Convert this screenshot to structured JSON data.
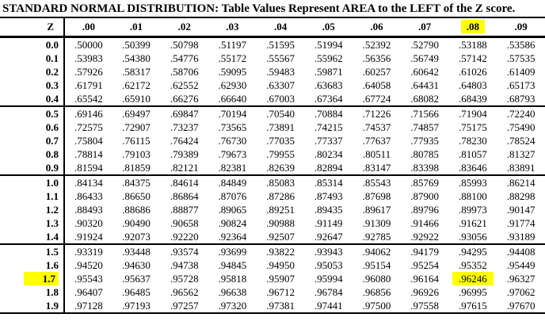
{
  "title": "STANDARD NORMAL DISTRIBUTION: Table Values Represent AREA to the LEFT of the Z score.",
  "colors": {
    "highlight": "#ffff00",
    "text": "#000000",
    "rule": "#000000",
    "background": "#ffffff"
  },
  "table": {
    "corner_header": "Z",
    "column_headers": [
      ".00",
      ".01",
      ".02",
      ".03",
      ".04",
      ".05",
      ".06",
      ".07",
      ".08",
      ".09"
    ],
    "highlight": {
      "column_header": ".08",
      "row_label": "1.7",
      "cell_value": ".96246"
    },
    "row_groups": [
      {
        "rows": [
          {
            "z": "0.0",
            "values": [
              ".50000",
              ".50399",
              ".50798",
              ".51197",
              ".51595",
              ".51994",
              ".52392",
              ".52790",
              ".53188",
              ".53586"
            ]
          },
          {
            "z": "0.1",
            "values": [
              ".53983",
              ".54380",
              ".54776",
              ".55172",
              ".55567",
              ".55962",
              ".56356",
              ".56749",
              ".57142",
              ".57535"
            ]
          },
          {
            "z": "0.2",
            "values": [
              ".57926",
              ".58317",
              ".58706",
              ".59095",
              ".59483",
              ".59871",
              ".60257",
              ".60642",
              ".61026",
              ".61409"
            ]
          },
          {
            "z": "0.3",
            "values": [
              ".61791",
              ".62172",
              ".62552",
              ".62930",
              ".63307",
              ".63683",
              ".64058",
              ".64431",
              ".64803",
              ".65173"
            ]
          },
          {
            "z": "0.4",
            "values": [
              ".65542",
              ".65910",
              ".66276",
              ".66640",
              ".67003",
              ".67364",
              ".67724",
              ".68082",
              ".68439",
              ".68793"
            ]
          }
        ]
      },
      {
        "rows": [
          {
            "z": "0.5",
            "values": [
              ".69146",
              ".69497",
              ".69847",
              ".70194",
              ".70540",
              ".70884",
              ".71226",
              ".71566",
              ".71904",
              ".72240"
            ]
          },
          {
            "z": "0.6",
            "values": [
              ".72575",
              ".72907",
              ".73237",
              ".73565",
              ".73891",
              ".74215",
              ".74537",
              ".74857",
              ".75175",
              ".75490"
            ]
          },
          {
            "z": "0.7",
            "values": [
              ".75804",
              ".76115",
              ".76424",
              ".76730",
              ".77035",
              ".77337",
              ".77637",
              ".77935",
              ".78230",
              ".78524"
            ]
          },
          {
            "z": "0.8",
            "values": [
              ".78814",
              ".79103",
              ".79389",
              ".79673",
              ".79955",
              ".80234",
              ".80511",
              ".80785",
              ".81057",
              ".81327"
            ]
          },
          {
            "z": "0.9",
            "values": [
              ".81594",
              ".81859",
              ".82121",
              ".82381",
              ".82639",
              ".82894",
              ".83147",
              ".83398",
              ".83646",
              ".83891"
            ]
          }
        ]
      },
      {
        "rows": [
          {
            "z": "1.0",
            "values": [
              ".84134",
              ".84375",
              ".84614",
              ".84849",
              ".85083",
              ".85314",
              ".85543",
              ".85769",
              ".85993",
              ".86214"
            ]
          },
          {
            "z": "1.1",
            "values": [
              ".86433",
              ".86650",
              ".86864",
              ".87076",
              ".87286",
              ".87493",
              ".87698",
              ".87900",
              ".88100",
              ".88298"
            ]
          },
          {
            "z": "1.2",
            "values": [
              ".88493",
              ".88686",
              ".88877",
              ".89065",
              ".89251",
              ".89435",
              ".89617",
              ".89796",
              ".89973",
              ".90147"
            ]
          },
          {
            "z": "1.3",
            "values": [
              ".90320",
              ".90490",
              ".90658",
              ".90824",
              ".90988",
              ".91149",
              ".91309",
              ".91466",
              ".91621",
              ".91774"
            ]
          },
          {
            "z": "1.4",
            "values": [
              ".91924",
              ".92073",
              ".92220",
              ".92364",
              ".92507",
              ".92647",
              ".92785",
              ".92922",
              ".93056",
              ".93189"
            ]
          }
        ]
      },
      {
        "rows": [
          {
            "z": "1.5",
            "values": [
              ".93319",
              ".93448",
              ".93574",
              ".93699",
              ".93822",
              ".93943",
              ".94062",
              ".94179",
              ".94295",
              ".94408"
            ]
          },
          {
            "z": "1.6",
            "values": [
              ".94520",
              ".94630",
              ".94738",
              ".94845",
              ".94950",
              ".95053",
              ".95154",
              ".95254",
              ".95352",
              ".95449"
            ]
          },
          {
            "z": "1.7",
            "values": [
              ".95543",
              ".95637",
              ".95728",
              ".95818",
              ".95907",
              ".95994",
              ".96080",
              ".96164",
              ".96246",
              ".96327"
            ]
          },
          {
            "z": "1.8",
            "values": [
              ".96407",
              ".96485",
              ".96562",
              ".96638",
              ".96712",
              ".96784",
              ".96856",
              ".96926",
              ".96995",
              ".97062"
            ]
          },
          {
            "z": "1.9",
            "values": [
              ".97128",
              ".97193",
              ".97257",
              ".97320",
              ".97381",
              ".97441",
              ".97500",
              ".97558",
              ".97615",
              ".97670"
            ]
          }
        ]
      }
    ]
  }
}
